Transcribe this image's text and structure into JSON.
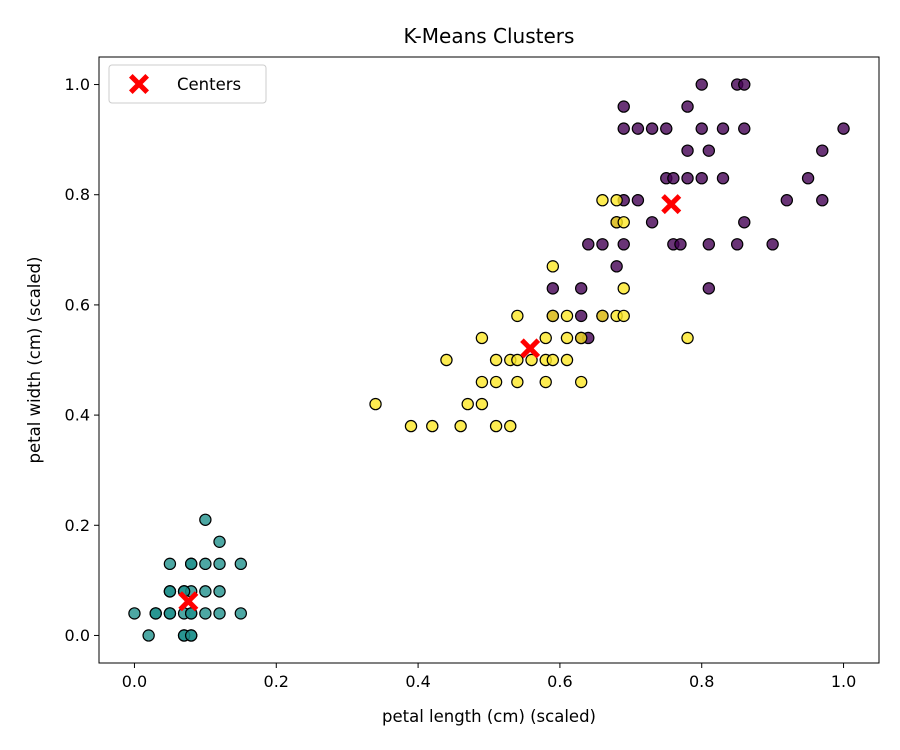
{
  "chart_data": {
    "type": "scatter",
    "title": "K-Means Clusters",
    "xlabel": "petal length (cm) (scaled)",
    "ylabel": "petal width (cm) (scaled)",
    "xlim": [
      -0.05,
      1.05
    ],
    "ylim": [
      -0.05,
      1.05
    ],
    "xticks": [
      0.0,
      0.2,
      0.4,
      0.6,
      0.8,
      1.0
    ],
    "yticks": [
      0.0,
      0.2,
      0.4,
      0.6,
      0.8,
      1.0
    ],
    "xtick_labels": [
      "0.0",
      "0.2",
      "0.4",
      "0.6",
      "0.8",
      "1.0"
    ],
    "ytick_labels": [
      "0.0",
      "0.2",
      "0.4",
      "0.6",
      "0.8",
      "1.0"
    ],
    "grid": false,
    "legend": {
      "position": "upper-left",
      "entries": [
        "Centers"
      ]
    },
    "series": [
      {
        "cluster": 0,
        "color": "#440154",
        "points": [
          [
            0.8,
            1.0
          ],
          [
            0.85,
            1.0
          ],
          [
            0.86,
            1.0
          ],
          [
            0.69,
            0.96
          ],
          [
            0.78,
            0.96
          ],
          [
            0.69,
            0.92
          ],
          [
            0.71,
            0.92
          ],
          [
            0.73,
            0.92
          ],
          [
            0.75,
            0.92
          ],
          [
            0.8,
            0.92
          ],
          [
            0.83,
            0.92
          ],
          [
            0.86,
            0.92
          ],
          [
            1.0,
            0.92
          ],
          [
            0.78,
            0.88
          ],
          [
            0.81,
            0.88
          ],
          [
            0.97,
            0.88
          ],
          [
            0.75,
            0.83
          ],
          [
            0.76,
            0.83
          ],
          [
            0.78,
            0.83
          ],
          [
            0.8,
            0.83
          ],
          [
            0.83,
            0.83
          ],
          [
            0.95,
            0.83
          ],
          [
            0.69,
            0.79
          ],
          [
            0.71,
            0.79
          ],
          [
            0.92,
            0.79
          ],
          [
            0.97,
            0.79
          ],
          [
            0.68,
            0.75
          ],
          [
            0.73,
            0.75
          ],
          [
            0.86,
            0.75
          ],
          [
            0.64,
            0.71
          ],
          [
            0.66,
            0.71
          ],
          [
            0.69,
            0.71
          ],
          [
            0.76,
            0.71
          ],
          [
            0.77,
            0.71
          ],
          [
            0.81,
            0.71
          ],
          [
            0.85,
            0.71
          ],
          [
            0.9,
            0.71
          ],
          [
            0.68,
            0.67
          ],
          [
            0.59,
            0.63
          ],
          [
            0.63,
            0.63
          ],
          [
            0.81,
            0.63
          ],
          [
            0.59,
            0.58
          ],
          [
            0.63,
            0.58
          ],
          [
            0.66,
            0.58
          ],
          [
            0.63,
            0.54
          ],
          [
            0.64,
            0.54
          ]
        ]
      },
      {
        "cluster": 1,
        "color": "#21918c",
        "points": [
          [
            0.1,
            0.21
          ],
          [
            0.12,
            0.17
          ],
          [
            0.05,
            0.13
          ],
          [
            0.08,
            0.13
          ],
          [
            0.08,
            0.13
          ],
          [
            0.1,
            0.13
          ],
          [
            0.12,
            0.13
          ],
          [
            0.15,
            0.13
          ],
          [
            0.05,
            0.08
          ],
          [
            0.07,
            0.08
          ],
          [
            0.08,
            0.08
          ],
          [
            0.1,
            0.08
          ],
          [
            0.12,
            0.08
          ],
          [
            0.05,
            0.08
          ],
          [
            0.07,
            0.08
          ],
          [
            0.0,
            0.04
          ],
          [
            0.03,
            0.04
          ],
          [
            0.05,
            0.04
          ],
          [
            0.07,
            0.04
          ],
          [
            0.08,
            0.04
          ],
          [
            0.1,
            0.04
          ],
          [
            0.12,
            0.04
          ],
          [
            0.15,
            0.04
          ],
          [
            0.03,
            0.04
          ],
          [
            0.05,
            0.04
          ],
          [
            0.08,
            0.04
          ],
          [
            0.02,
            0.0
          ],
          [
            0.07,
            0.0
          ],
          [
            0.08,
            0.0
          ],
          [
            0.07,
            0.0
          ],
          [
            0.08,
            0.0
          ]
        ]
      },
      {
        "cluster": 2,
        "color": "#fde725",
        "points": [
          [
            0.66,
            0.79
          ],
          [
            0.68,
            0.79
          ],
          [
            0.68,
            0.75
          ],
          [
            0.69,
            0.75
          ],
          [
            0.59,
            0.67
          ],
          [
            0.69,
            0.63
          ],
          [
            0.54,
            0.58
          ],
          [
            0.59,
            0.58
          ],
          [
            0.61,
            0.58
          ],
          [
            0.66,
            0.58
          ],
          [
            0.68,
            0.58
          ],
          [
            0.69,
            0.58
          ],
          [
            0.49,
            0.54
          ],
          [
            0.58,
            0.54
          ],
          [
            0.61,
            0.54
          ],
          [
            0.63,
            0.54
          ],
          [
            0.78,
            0.54
          ],
          [
            0.51,
            0.5
          ],
          [
            0.53,
            0.5
          ],
          [
            0.54,
            0.5
          ],
          [
            0.56,
            0.5
          ],
          [
            0.58,
            0.5
          ],
          [
            0.59,
            0.5
          ],
          [
            0.61,
            0.5
          ],
          [
            0.44,
            0.5
          ],
          [
            0.49,
            0.46
          ],
          [
            0.51,
            0.46
          ],
          [
            0.54,
            0.46
          ],
          [
            0.58,
            0.46
          ],
          [
            0.63,
            0.46
          ],
          [
            0.47,
            0.42
          ],
          [
            0.49,
            0.42
          ],
          [
            0.34,
            0.42
          ],
          [
            0.39,
            0.38
          ],
          [
            0.42,
            0.38
          ],
          [
            0.46,
            0.38
          ],
          [
            0.51,
            0.38
          ],
          [
            0.53,
            0.38
          ]
        ]
      }
    ],
    "centers": {
      "label": "Centers",
      "color": "#ff0000",
      "points": [
        [
          0.076,
          0.062
        ],
        [
          0.558,
          0.521
        ],
        [
          0.757,
          0.783
        ]
      ]
    }
  }
}
